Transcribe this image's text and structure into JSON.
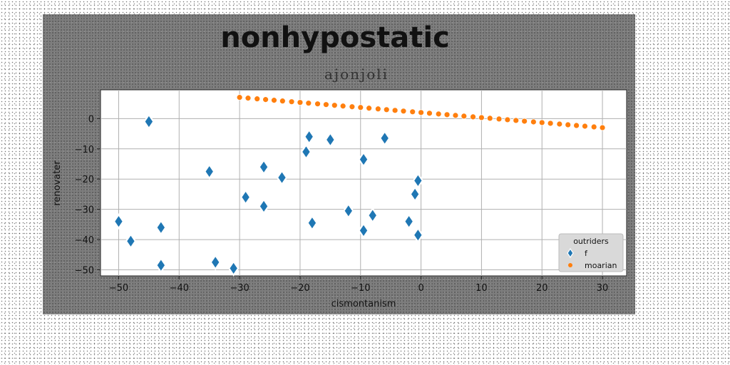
{
  "chart_data": {
    "type": "scatter",
    "title": "nonhypostatic",
    "subtitle": "ajonjoli",
    "xlabel": "cismontanism",
    "ylabel": "renovater",
    "xlim": [
      -53,
      34
    ],
    "ylim": [
      -52,
      9.5
    ],
    "xticks": [
      -50,
      -40,
      -30,
      -20,
      -10,
      0,
      10,
      20,
      30
    ],
    "yticks": [
      0,
      -10,
      -20,
      -30,
      -40,
      -50
    ],
    "grid": true,
    "legend": {
      "title": "outriders",
      "placement": "lower-right"
    },
    "series": [
      {
        "name": "f",
        "marker": "diamond",
        "color": "#1f77b4",
        "x": [
          -45,
          -50,
          -48,
          -43,
          -43,
          -35,
          -34,
          -31,
          -29,
          -26,
          -26,
          -23,
          -19,
          -18.5,
          -18,
          -15,
          -12,
          -9.5,
          -9.5,
          -8,
          -6,
          -2,
          -1,
          -0.5,
          -0.5
        ],
        "y": [
          -1,
          -34,
          -40.5,
          -36,
          -48.5,
          -17.5,
          -47.5,
          -49.5,
          -26,
          -16,
          -29,
          -19.5,
          -11,
          -6,
          -34.5,
          -7,
          -30.5,
          -13.5,
          -37,
          -32,
          -6.5,
          -34,
          -25,
          -20.5,
          -38.5
        ]
      },
      {
        "name": "moarian",
        "marker": "circle",
        "color": "#ff7f0e",
        "x": [
          -30,
          -28.6,
          -27.1,
          -25.7,
          -24.3,
          -22.9,
          -21.4,
          -20,
          -18.6,
          -17.1,
          -15.7,
          -14.3,
          -12.9,
          -11.4,
          -10,
          -8.6,
          -7.1,
          -5.7,
          -4.3,
          -2.9,
          -1.4,
          0,
          1.4,
          2.9,
          4.3,
          5.7,
          7.1,
          8.6,
          10,
          11.4,
          12.9,
          14.3,
          15.7,
          17.1,
          18.6,
          20,
          21.4,
          22.9,
          24.3,
          25.7,
          27.1,
          28.6,
          30
        ],
        "y": [
          7,
          6.76,
          6.52,
          6.29,
          6.05,
          5.81,
          5.57,
          5.33,
          5.1,
          4.86,
          4.62,
          4.38,
          4.14,
          3.9,
          3.67,
          3.43,
          3.19,
          2.95,
          2.71,
          2.48,
          2.24,
          2,
          1.76,
          1.52,
          1.29,
          1.05,
          0.81,
          0.57,
          0.33,
          0.1,
          -0.14,
          -0.38,
          -0.62,
          -0.86,
          -1.1,
          -1.33,
          -1.57,
          -1.81,
          -2.05,
          -2.29,
          -2.52,
          -2.76,
          -3
        ]
      }
    ]
  }
}
